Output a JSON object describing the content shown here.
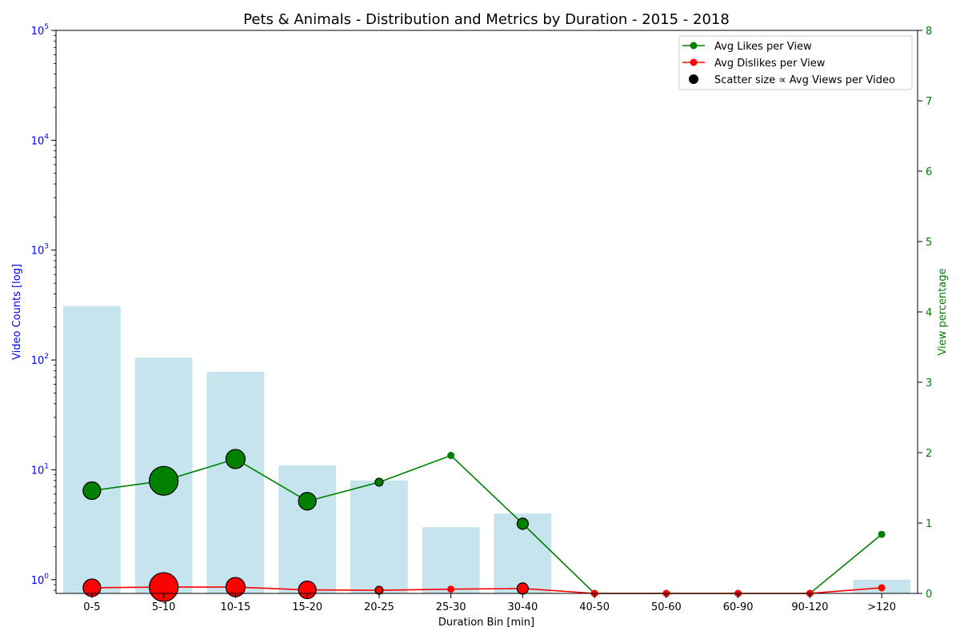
{
  "chart_data": {
    "type": "bar",
    "title": "Pets & Animals - Distribution and Metrics by Duration - 2015 - 2018",
    "xlabel": "Duration Bin [min]",
    "ylabel_left": "Video Counts [log]",
    "ylabel_right": "View percentage",
    "categories": [
      "0-5",
      "5-10",
      "10-15",
      "15-20",
      "20-25",
      "25-30",
      "30-40",
      "40-50",
      "50-60",
      "60-90",
      "90-120",
      ">120"
    ],
    "left_axis": {
      "scale": "log",
      "ylim": [
        0.75,
        100000
      ],
      "ticks": [
        {
          "value": 1,
          "base": "10",
          "exp": "0"
        },
        {
          "value": 10,
          "base": "10",
          "exp": "1"
        },
        {
          "value": 100,
          "base": "10",
          "exp": "2"
        },
        {
          "value": 1000,
          "base": "10",
          "exp": "3"
        },
        {
          "value": 10000,
          "base": "10",
          "exp": "4"
        },
        {
          "value": 100000,
          "base": "10",
          "exp": "5"
        }
      ]
    },
    "right_axis": {
      "scale": "linear",
      "ylim": [
        0,
        8
      ],
      "ticks": [
        "0",
        "1",
        "2",
        "3",
        "4",
        "5",
        "6",
        "7",
        "8"
      ]
    },
    "bars": {
      "name": "Video Counts",
      "values": [
        310,
        105,
        78,
        11,
        8,
        3,
        4,
        0,
        0,
        0,
        0,
        1
      ]
    },
    "series": [
      {
        "name": "Avg Likes per View",
        "values": [
          1.46,
          1.6,
          1.91,
          1.31,
          1.58,
          1.96,
          0.99,
          0.0,
          0.0,
          0.0,
          0.0,
          0.84
        ]
      },
      {
        "name": "Avg Dislikes per View",
        "values": [
          0.08,
          0.09,
          0.09,
          0.05,
          0.045,
          0.06,
          0.07,
          0.0,
          0.0,
          0.0,
          0.0,
          0.08
        ]
      }
    ],
    "scatter_size_values": [
      11,
      18,
      12,
      11,
      5,
      0,
      7,
      0,
      0,
      0,
      0,
      0
    ],
    "legend": {
      "position": "top-right",
      "entries": [
        {
          "label": "Avg Likes per View",
          "marker": "line-dot"
        },
        {
          "label": "Avg Dislikes per View",
          "marker": "line-dot"
        },
        {
          "label": "Scatter size ∝ Avg Views per Video",
          "marker": "dot"
        }
      ]
    },
    "colors": {
      "bars": "#add8e6",
      "likes": "#008000",
      "dislikes": "#ff0000",
      "left_axis": "#0000ff",
      "right_axis": "#008000",
      "scatter_edge": "#000000"
    },
    "grid": false
  }
}
